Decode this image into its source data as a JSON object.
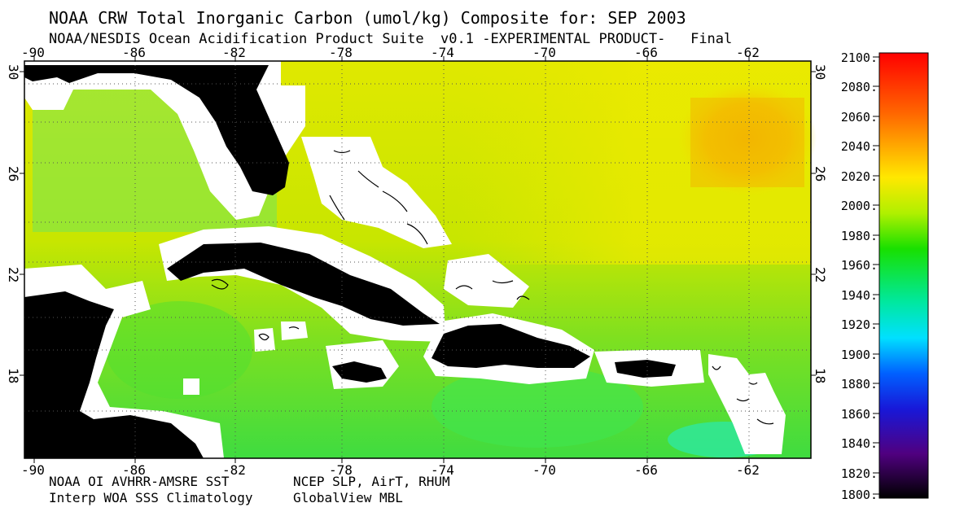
{
  "header": {
    "title": "NOAA CRW Total Inorganic Carbon (umol/kg) Composite for: SEP 2003",
    "subtitle": "NOAA/NESDIS Ocean Acidification Product Suite  v0.1 -EXPERIMENTAL PRODUCT-   Final"
  },
  "map": {
    "lon_ticks": [
      "-90",
      "-86",
      "-82",
      "-78",
      "-74",
      "-70",
      "-66",
      "-62"
    ],
    "lat_ticks": [
      "30",
      "26",
      "22",
      "18"
    ],
    "colors": {
      "land": "#000000",
      "coast_mask": "#ffffff",
      "ocean_low": "#22ee88",
      "ocean_mid": "#6fe020",
      "ocean_high": "#e8e800",
      "ocean_peak": "#f5b400"
    }
  },
  "colorbar": {
    "labels": [
      "2100.",
      "2080.",
      "2060.",
      "2040.",
      "2020.",
      "2000.",
      "1980.",
      "1960.",
      "1940.",
      "1920.",
      "1900.",
      "1880.",
      "1860.",
      "1840.",
      "1820.",
      "1800."
    ]
  },
  "footer": {
    "line1_left": "NOAA OI AVHRR-AMSRE SST",
    "line1_right": "NCEP SLP, AirT, RHUM",
    "line2_left": "Interp WOA SSS Climatology",
    "line2_right": "GlobalView MBL"
  }
}
